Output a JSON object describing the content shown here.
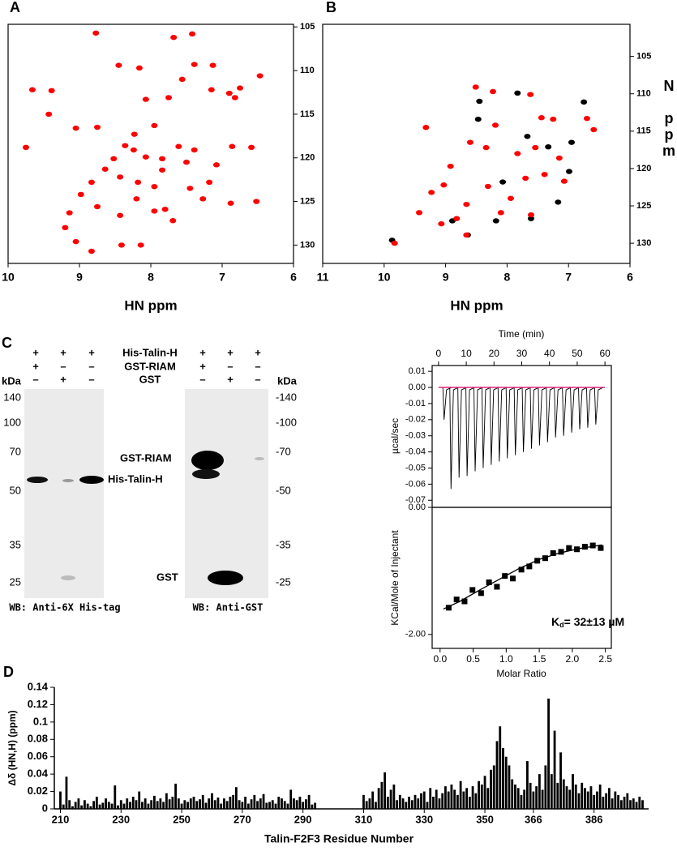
{
  "panel_labels": [
    "A",
    "B",
    "C",
    "D"
  ],
  "chart_data": [
    {
      "type": "scatter",
      "x_label": "HN ppm",
      "xlim": [
        10,
        6
      ],
      "ylim": [
        132.1,
        104.7
      ],
      "xticks": [
        10,
        9,
        8,
        7,
        6
      ],
      "yticks": [
        105,
        110,
        115,
        120,
        125,
        130
      ],
      "series": [
        {
          "color": "#ff0000",
          "marker": "ellipse",
          "x": [
            8.77,
            7.68,
            7.42,
            6.47,
            6.75,
            6.82,
            6.9,
            7.13,
            7.39,
            7.15,
            7.56,
            8.16,
            8.45,
            8.07,
            7.95,
            7.75,
            8.75,
            9.05,
            9.43,
            9.39,
            9.66,
            9.75,
            8.36,
            8.24,
            8.07,
            7.84,
            7.61,
            7.39,
            7.5,
            7.08,
            6.86,
            6.59,
            8.43,
            8.18,
            7.95,
            7.84,
            8.64,
            8.83,
            8.98,
            9.14,
            8.75,
            8.43,
            7.8,
            7.45,
            7.27,
            6.88,
            6.52,
            9.2,
            8.41,
            8.14,
            8.83,
            9.05,
            7.69,
            8.23,
            8.52,
            8.2,
            7.95,
            7.18
          ],
          "values": [
            105.7,
            106.2,
            105.8,
            110.6,
            112,
            113.1,
            112.6,
            109.4,
            109.3,
            112.2,
            111,
            109.7,
            109.4,
            113.3,
            116.3,
            113.1,
            116.5,
            116.6,
            115,
            112.3,
            112.2,
            118.8,
            118.6,
            119.1,
            119.9,
            120.1,
            118.7,
            119.1,
            120.5,
            120.8,
            118.7,
            118.8,
            122.2,
            122.8,
            123.3,
            121.4,
            121.3,
            122.8,
            124.2,
            126.3,
            125.6,
            126.6,
            125.9,
            123.5,
            124.7,
            125.2,
            125,
            128,
            130,
            130,
            130.7,
            129.6,
            127.2,
            117.3,
            120.1,
            124.7,
            126.1,
            122.8
          ]
        }
      ]
    },
    {
      "type": "scatter",
      "x_label": "HN ppm",
      "y_label": "N ppm",
      "xlim": [
        11,
        6
      ],
      "ylim": [
        132.7,
        100.7
      ],
      "xticks": [
        11,
        10,
        9,
        8,
        7,
        6
      ],
      "yticks": [
        105,
        110,
        115,
        120,
        125,
        130
      ],
      "series": [
        {
          "color": "#000000",
          "marker": "ellipse",
          "x": [
            9.87,
            8.64,
            7.61,
            7.17,
            6.99,
            6.95,
            8.45,
            7.83,
            6.75,
            7.67,
            8.89,
            8.18,
            7.33,
            8.07,
            8.47
          ],
          "values": [
            129.6,
            128.9,
            126.7,
            124.5,
            120.4,
            116.5,
            111,
            109.9,
            111.1,
            115.7,
            127,
            127,
            117.1,
            121.8,
            113.4
          ]
        },
        {
          "color": "#ff0000",
          "marker": "ellipse",
          "x": [
            9.83,
            9.23,
            8.31,
            7.94,
            7.7,
            7.39,
            7.07,
            6.7,
            6.59,
            7.44,
            7.25,
            8.19,
            8.51,
            8.23,
            7.62,
            9.32,
            8.6,
            8.92,
            9.03,
            8.66,
            8.82,
            8.1,
            7.61,
            8.66,
            9.07,
            9.43,
            7.83,
            7.54,
            7.15,
            8.34
          ],
          "values": [
            130,
            123.2,
            122.4,
            124,
            121.3,
            120.8,
            121.7,
            113.3,
            114.8,
            113.2,
            113.4,
            114.2,
            109.1,
            109.7,
            110.1,
            114.5,
            116.5,
            119.7,
            122.2,
            124.8,
            126.7,
            125.9,
            126.2,
            128.9,
            127.4,
            125.9,
            118,
            117.2,
            118.6,
            117.2
          ]
        }
      ]
    },
    {
      "type": "thermogram",
      "x_label": "Time (min)",
      "y_label": "µcal/sec",
      "xlim": [
        -2.3,
        62.3
      ],
      "ylim": [
        -0.0744,
        0.0136
      ],
      "xticks": [
        0,
        10,
        20,
        30,
        40,
        50,
        60
      ],
      "yticks": [
        0.01,
        {
          "value": 0,
          "label": "0.00"
        },
        -0.01,
        -0.02,
        -0.03,
        -0.04,
        -0.05,
        -0.06,
        -0.07
      ],
      "baseline": 0,
      "baseline_color": "#e0207a",
      "color": "#000000",
      "x": [
        2,
        4.5,
        7.4,
        10.3,
        13.2,
        16.1,
        19,
        21.9,
        24.8,
        27.7,
        30.6,
        33.5,
        36.4,
        39.3,
        42.2,
        45.1,
        48,
        50.9,
        53.8,
        56.7
      ],
      "values": [
        -0.02,
        -0.063,
        -0.056,
        -0.055,
        -0.052,
        -0.05,
        -0.048,
        -0.046,
        -0.044,
        -0.042,
        -0.04,
        -0.038,
        -0.036,
        -0.034,
        -0.031,
        -0.03,
        -0.028,
        -0.026,
        -0.025,
        -0.023
      ]
    },
    {
      "type": "scatter",
      "x_label": "Molar Ratio",
      "y_label": "KCal/Mole of Injectant",
      "xlim": [
        -0.12,
        2.59
      ],
      "ylim": [
        -2.22,
        0
      ],
      "xticks": [
        {
          "value": 0,
          "label": "0.0"
        },
        0.5,
        {
          "value": 1,
          "label": "1.0"
        },
        1.5,
        {
          "value": 2,
          "label": "2.0"
        },
        2.5
      ],
      "yticks": [
        {
          "value": -2,
          "label": "-2.00"
        },
        {
          "value": 0,
          "label": "0.00"
        }
      ],
      "annotation": {
        "main": "K",
        "sub": "d",
        "rest": "= 32±13 µM"
      },
      "series": [
        {
          "color": "#000000",
          "marker": "square",
          "x": [
            0.13,
            0.25,
            0.37,
            0.49,
            0.62,
            0.74,
            0.86,
            0.98,
            1.1,
            1.23,
            1.35,
            1.47,
            1.59,
            1.71,
            1.83,
            1.95,
            2.07,
            2.19,
            2.31,
            2.43
          ],
          "values": [
            -1.58,
            -1.45,
            -1.48,
            -1.3,
            -1.35,
            -1.18,
            -1.25,
            -1.08,
            -1.12,
            -0.98,
            -0.93,
            -0.84,
            -0.8,
            -0.72,
            -0.7,
            -0.64,
            -0.66,
            -0.62,
            -0.6,
            -0.64
          ]
        },
        {
          "color": "#000000",
          "mode": "line",
          "x": [
            0.05,
            0.3,
            0.6,
            0.9,
            1.2,
            1.5,
            1.8,
            2.1,
            2.45
          ],
          "values": [
            -1.6,
            -1.48,
            -1.3,
            -1.13,
            -0.96,
            -0.82,
            -0.72,
            -0.65,
            -0.59
          ]
        }
      ]
    },
    {
      "type": "bar",
      "x_label": "Talin-F2F3 Residue Number",
      "y_label": "Δδ (HN,H) (ppm)",
      "color": "#000000",
      "xlim": [
        208,
        404
      ],
      "ylim": [
        0,
        0.14
      ],
      "xticks": [
        210,
        230,
        250,
        270,
        290,
        310,
        330,
        350,
        366,
        386
      ],
      "yticks": [
        0,
        0.02,
        0.04,
        0.06,
        0.08,
        0.1,
        0.12,
        0.14
      ],
      "x": [
        210,
        211,
        212,
        213,
        214,
        215,
        216,
        217,
        218,
        219,
        220,
        221,
        222,
        223,
        224,
        225,
        226,
        227,
        228,
        229,
        230,
        231,
        232,
        233,
        234,
        235,
        236,
        237,
        238,
        239,
        240,
        241,
        242,
        243,
        244,
        245,
        246,
        247,
        248,
        249,
        250,
        251,
        252,
        253,
        254,
        255,
        256,
        257,
        258,
        259,
        260,
        261,
        262,
        263,
        264,
        265,
        266,
        267,
        268,
        269,
        270,
        271,
        272,
        273,
        274,
        275,
        276,
        277,
        278,
        279,
        280,
        281,
        282,
        283,
        284,
        285,
        286,
        287,
        288,
        289,
        290,
        291,
        292,
        293,
        294,
        295,
        296,
        297,
        298,
        299,
        300,
        301,
        302,
        303,
        304,
        305,
        306,
        307,
        308,
        309,
        310,
        311,
        312,
        313,
        314,
        315,
        316,
        317,
        318,
        319,
        320,
        321,
        322,
        323,
        324,
        325,
        326,
        327,
        328,
        329,
        330,
        331,
        332,
        333,
        334,
        335,
        336,
        337,
        338,
        339,
        340,
        341,
        342,
        343,
        344,
        345,
        346,
        347,
        348,
        349,
        350,
        351,
        352,
        353,
        354,
        355,
        356,
        357,
        358,
        359,
        360,
        361,
        362,
        363,
        364,
        365,
        366,
        367,
        368,
        369,
        370,
        371,
        372,
        373,
        374,
        375,
        376,
        377,
        378,
        379,
        380,
        381,
        382,
        383,
        384,
        385,
        386,
        387,
        388,
        389,
        390,
        391,
        392,
        393,
        394,
        395,
        396,
        397,
        398,
        399,
        400,
        401,
        402
      ],
      "values": [
        0.02,
        0.005,
        0.037,
        0.01,
        0.003,
        0.008,
        0.012,
        0.004,
        0.01,
        0.006,
        0.003,
        0.009,
        0.014,
        0.005,
        0.007,
        0.012,
        0.008,
        0.006,
        0.027,
        0.004,
        0.01,
        0.006,
        0.012,
        0.008,
        0.014,
        0.01,
        0.02,
        0.008,
        0.012,
        0.006,
        0.01,
        0.015,
        0.009,
        0.012,
        0.008,
        0.018,
        0.011,
        0.014,
        0.029,
        0.012,
        0.006,
        0.01,
        0.008,
        0.012,
        0.014,
        0.009,
        0.011,
        0.016,
        0.007,
        0.012,
        0.018,
        0.01,
        0.013,
        0.006,
        0.012,
        0.009,
        0.014,
        0.016,
        0.025,
        0.01,
        0.008,
        0.014,
        0.006,
        0.011,
        0.016,
        0.009,
        0.012,
        0.017,
        0.007,
        0.008,
        0.01,
        0.006,
        0.014,
        0.012,
        0.009,
        0.006,
        0.022,
        0.012,
        0.01,
        0.014,
        0.008,
        0.011,
        0.016,
        0.005,
        0.007,
        null,
        null,
        null,
        null,
        null,
        null,
        null,
        null,
        null,
        null,
        null,
        null,
        null,
        null,
        null,
        0.016,
        0.009,
        0.012,
        0.02,
        0.008,
        0.024,
        0.031,
        0.042,
        0.014,
        0.022,
        0.028,
        0.01,
        0.016,
        0.012,
        0.008,
        0.014,
        0.01,
        0.016,
        0.012,
        0.018,
        0.02,
        0.008,
        0.024,
        0.014,
        0.022,
        0.012,
        0.018,
        0.026,
        0.02,
        0.028,
        0.022,
        0.016,
        0.032,
        0.02,
        0.024,
        0.014,
        0.026,
        0.018,
        0.032,
        0.028,
        0.038,
        0.024,
        0.045,
        0.05,
        0.078,
        0.095,
        0.07,
        0.06,
        0.05,
        0.034,
        0.028,
        0.024,
        0.016,
        0.022,
        0.055,
        0.03,
        0.02,
        0.026,
        0.04,
        0.022,
        0.05,
        0.127,
        0.04,
        0.09,
        0.03,
        0.065,
        0.034,
        0.026,
        0.022,
        0.04,
        0.028,
        0.018,
        0.03,
        0.024,
        0.02,
        0.026,
        0.016,
        0.02,
        0.028,
        0.014,
        0.018,
        0.024,
        0.012,
        0.02,
        0.016,
        0.01,
        0.014,
        0.018,
        0.01,
        0.012,
        0.008,
        0.014,
        0.01
      ]
    }
  ],
  "western_blot": {
    "conditions": [
      {
        "label": "His-Talin-H",
        "marks": [
          "+",
          "+",
          "+",
          "+",
          "+",
          "+"
        ]
      },
      {
        "label": "GST-RIAM",
        "marks": [
          "+",
          "–",
          "–",
          "+",
          "–",
          "–"
        ]
      },
      {
        "label": "GST",
        "marks": [
          "–",
          "+",
          "–",
          "–",
          "+",
          "–"
        ]
      }
    ],
    "kda_label": "kDa",
    "markers": [
      "140",
      "100",
      "70",
      "50",
      "35",
      "25"
    ],
    "right_markers": [
      "-140",
      "-100",
      "-70",
      "-50",
      "-35",
      "-25"
    ],
    "band_labels": [
      "His-Talin-H",
      "GST-RIAM",
      "GST"
    ],
    "captions": [
      "WB: Anti-6X His-tag",
      "WB: Anti-GST"
    ]
  }
}
